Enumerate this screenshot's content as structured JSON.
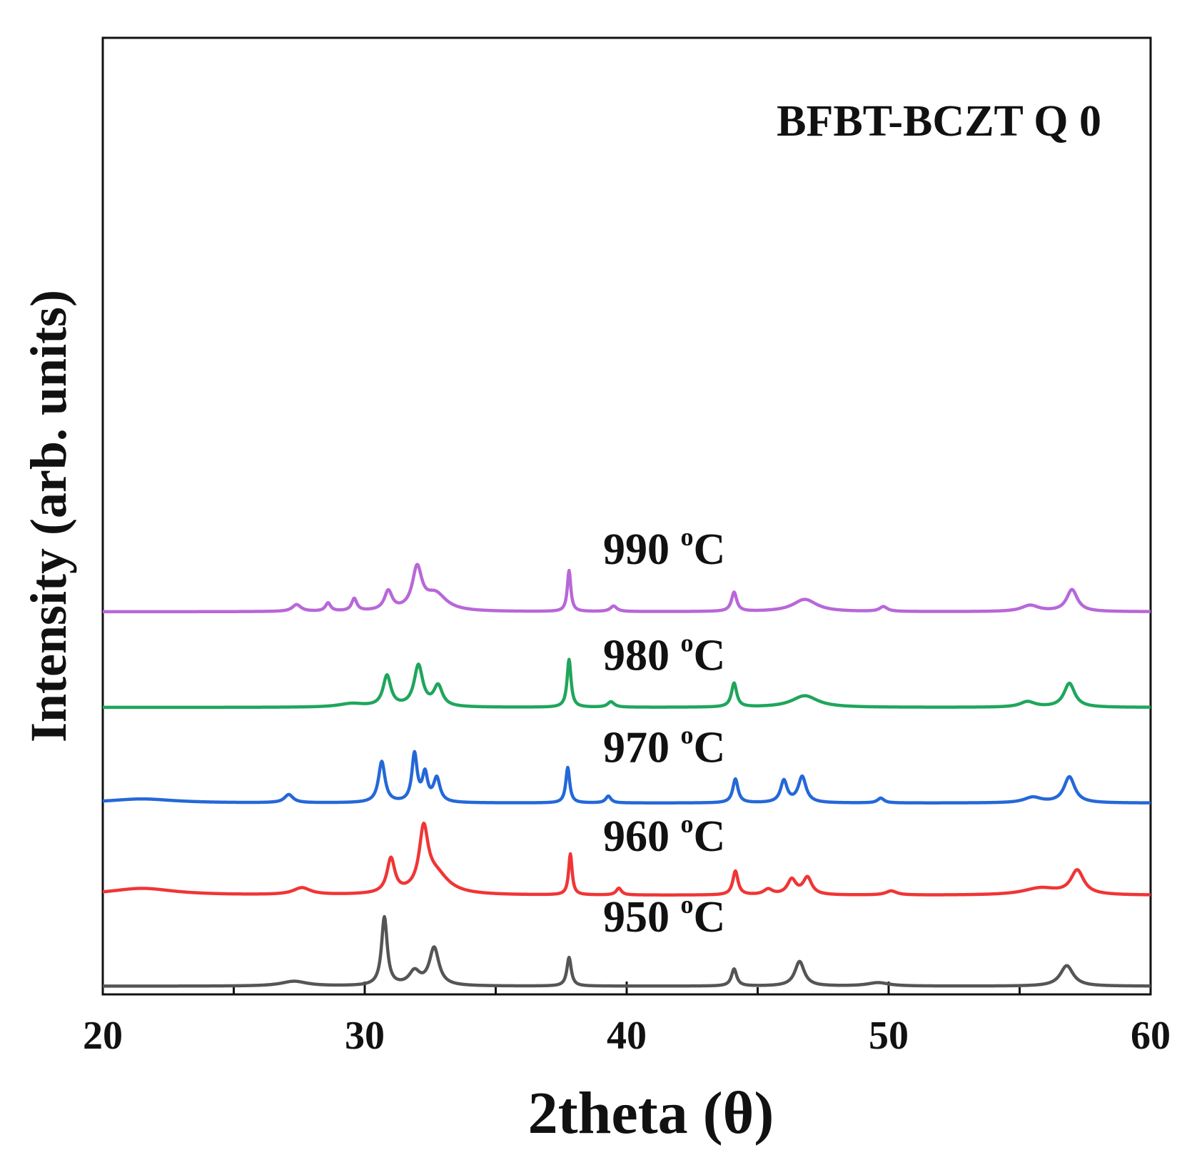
{
  "chart_data": {
    "type": "line",
    "title": "BFBT-BCZT Q 0",
    "xlabel": "2theta (θ)",
    "ylabel": "Intensity (arb. units)",
    "xlim": [
      20,
      60
    ],
    "ylim": [
      0,
      14
    ],
    "x_ticks": [
      20,
      30,
      40,
      50,
      60
    ],
    "x_tick_labels": [
      "20",
      "30",
      "40",
      "50",
      "60"
    ],
    "grid": false,
    "series": [
      {
        "name": "950 °C",
        "label_main": "950 ",
        "label_deg": "o",
        "label_unit": "C",
        "color": "#555555",
        "baseline": 0.12,
        "label_at": [
          39.1,
          0.92
        ],
        "peaks": [
          [
            27.3,
            0.07,
            0.6
          ],
          [
            30.75,
            1.0,
            0.13
          ],
          [
            31.9,
            0.2,
            0.25
          ],
          [
            32.65,
            0.55,
            0.22
          ],
          [
            37.8,
            0.42,
            0.1
          ],
          [
            44.1,
            0.25,
            0.12
          ],
          [
            46.6,
            0.36,
            0.22
          ],
          [
            49.6,
            0.05,
            0.5
          ],
          [
            56.8,
            0.3,
            0.3
          ]
        ]
      },
      {
        "name": "960 °C",
        "label_main": "960 ",
        "label_deg": "o",
        "label_unit": "C",
        "color": "#f03535",
        "baseline": 1.45,
        "label_at": [
          39.1,
          2.1
        ],
        "peaks": [
          [
            21.5,
            0.1,
            1.5
          ],
          [
            27.6,
            0.1,
            0.4
          ],
          [
            31.0,
            0.5,
            0.18
          ],
          [
            32.25,
            0.85,
            0.2
          ],
          [
            32.7,
            0.3,
            0.6
          ],
          [
            37.85,
            0.6,
            0.08
          ],
          [
            39.7,
            0.1,
            0.12
          ],
          [
            44.15,
            0.35,
            0.12
          ],
          [
            45.4,
            0.08,
            0.2
          ],
          [
            46.3,
            0.22,
            0.2
          ],
          [
            46.9,
            0.25,
            0.2
          ],
          [
            50.1,
            0.06,
            0.25
          ],
          [
            55.8,
            0.1,
            0.8
          ],
          [
            57.2,
            0.35,
            0.3
          ]
        ]
      },
      {
        "name": "970 °C",
        "label_main": "970 ",
        "label_deg": "o",
        "label_unit": "C",
        "color": "#2468d8",
        "baseline": 2.8,
        "label_at": [
          39.1,
          3.4
        ],
        "peaks": [
          [
            21.5,
            0.06,
            1.5
          ],
          [
            27.1,
            0.12,
            0.2
          ],
          [
            30.65,
            0.6,
            0.15
          ],
          [
            31.9,
            0.7,
            0.12
          ],
          [
            32.3,
            0.4,
            0.12
          ],
          [
            32.75,
            0.35,
            0.15
          ],
          [
            37.75,
            0.52,
            0.09
          ],
          [
            39.3,
            0.1,
            0.12
          ],
          [
            44.15,
            0.35,
            0.12
          ],
          [
            46.0,
            0.32,
            0.15
          ],
          [
            46.7,
            0.38,
            0.18
          ],
          [
            49.7,
            0.07,
            0.15
          ],
          [
            55.5,
            0.08,
            0.4
          ],
          [
            56.9,
            0.38,
            0.25
          ]
        ]
      },
      {
        "name": "980 °C",
        "label_main": "980 ",
        "label_deg": "o",
        "label_unit": "C",
        "color": "#1fa65c",
        "baseline": 4.2,
        "label_at": [
          39.1,
          4.75
        ],
        "peaks": [
          [
            29.5,
            0.05,
            0.6
          ],
          [
            30.85,
            0.45,
            0.18
          ],
          [
            32.05,
            0.6,
            0.2
          ],
          [
            32.8,
            0.3,
            0.2
          ],
          [
            37.8,
            0.7,
            0.09
          ],
          [
            39.4,
            0.08,
            0.15
          ],
          [
            44.1,
            0.35,
            0.12
          ],
          [
            46.8,
            0.17,
            0.6
          ],
          [
            55.3,
            0.08,
            0.35
          ],
          [
            56.9,
            0.35,
            0.25
          ]
        ]
      },
      {
        "name": "990 °C",
        "label_main": "990 ",
        "label_deg": "o",
        "label_unit": "C",
        "color": "#b867d8",
        "baseline": 5.6,
        "label_at": [
          39.1,
          6.3
        ],
        "peaks": [
          [
            27.4,
            0.1,
            0.2
          ],
          [
            28.6,
            0.12,
            0.12
          ],
          [
            29.6,
            0.18,
            0.12
          ],
          [
            30.9,
            0.28,
            0.18
          ],
          [
            32.0,
            0.6,
            0.22
          ],
          [
            32.7,
            0.25,
            0.5
          ],
          [
            37.8,
            0.6,
            0.08
          ],
          [
            39.5,
            0.08,
            0.15
          ],
          [
            44.1,
            0.28,
            0.12
          ],
          [
            46.8,
            0.18,
            0.55
          ],
          [
            49.8,
            0.07,
            0.18
          ],
          [
            55.4,
            0.09,
            0.4
          ],
          [
            57.0,
            0.32,
            0.25
          ]
        ]
      }
    ]
  }
}
